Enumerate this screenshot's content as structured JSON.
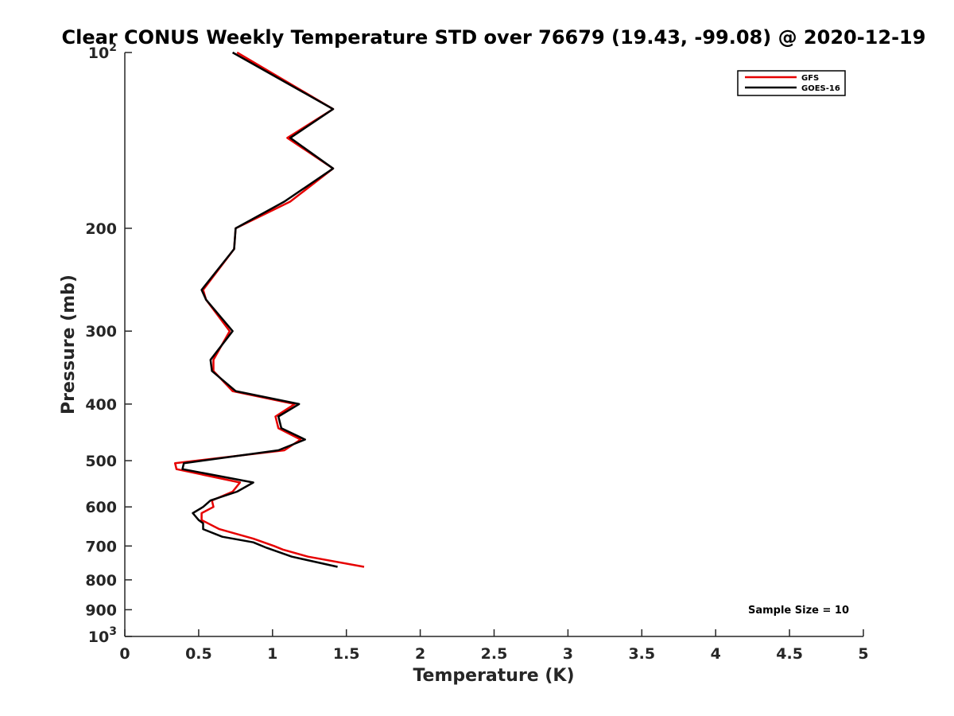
{
  "chart_data": {
    "type": "line",
    "title": "Clear CONUS Weekly Temperature STD over 76679 (19.43, -99.08) @ 2020-12-19",
    "xlabel": "Temperature (K)",
    "ylabel": "Pressure (mb)",
    "xlim": [
      0,
      5
    ],
    "ylim": [
      100,
      1000
    ],
    "y_scale": "log",
    "y_reversed": true,
    "x_ticks": [
      "0",
      "0.5",
      "1",
      "1.5",
      "2",
      "2.5",
      "3",
      "3.5",
      "4",
      "4.5",
      "5"
    ],
    "y_ticks": [
      {
        "value": 100,
        "base": "10",
        "exp": "2"
      },
      {
        "value": 200,
        "label": "200"
      },
      {
        "value": 300,
        "label": "300"
      },
      {
        "value": 400,
        "label": "400"
      },
      {
        "value": 500,
        "label": "500"
      },
      {
        "value": 600,
        "label": "600"
      },
      {
        "value": 700,
        "label": "700"
      },
      {
        "value": 800,
        "label": "800"
      },
      {
        "value": 900,
        "label": "900"
      },
      {
        "value": 1000,
        "base": "10",
        "exp": "3"
      }
    ],
    "grid": false,
    "legend_position": "top-right",
    "annotation": "Sample Size = 10",
    "series": [
      {
        "name": "GFS",
        "color": "#e60000",
        "points": [
          [
            0.76,
            100
          ],
          [
            1.41,
            125
          ],
          [
            1.1,
            140
          ],
          [
            1.41,
            158
          ],
          [
            1.12,
            180
          ],
          [
            0.75,
            200
          ],
          [
            0.74,
            217
          ],
          [
            0.53,
            255
          ],
          [
            0.55,
            265
          ],
          [
            0.71,
            300
          ],
          [
            0.6,
            336
          ],
          [
            0.6,
            351
          ],
          [
            0.73,
            380
          ],
          [
            1.15,
            400
          ],
          [
            1.02,
            420
          ],
          [
            1.04,
            440
          ],
          [
            1.19,
            460
          ],
          [
            1.08,
            480
          ],
          [
            0.34,
            505
          ],
          [
            0.35,
            517
          ],
          [
            0.78,
            545
          ],
          [
            0.73,
            565
          ],
          [
            0.59,
            585
          ],
          [
            0.6,
            600
          ],
          [
            0.52,
            615
          ],
          [
            0.52,
            632
          ],
          [
            0.64,
            655
          ],
          [
            0.87,
            680
          ],
          [
            1.01,
            700
          ],
          [
            1.07,
            710
          ],
          [
            1.24,
            730
          ],
          [
            1.62,
            760
          ]
        ]
      },
      {
        "name": "GOES-16",
        "color": "#000000",
        "points": [
          [
            0.73,
            100
          ],
          [
            1.41,
            125
          ],
          [
            1.12,
            140
          ],
          [
            1.41,
            158
          ],
          [
            1.08,
            180
          ],
          [
            0.75,
            200
          ],
          [
            0.74,
            217
          ],
          [
            0.52,
            255
          ],
          [
            0.55,
            265
          ],
          [
            0.73,
            300
          ],
          [
            0.58,
            336
          ],
          [
            0.59,
            351
          ],
          [
            0.75,
            380
          ],
          [
            1.18,
            400
          ],
          [
            1.04,
            420
          ],
          [
            1.06,
            440
          ],
          [
            1.22,
            460
          ],
          [
            1.04,
            480
          ],
          [
            0.4,
            505
          ],
          [
            0.39,
            517
          ],
          [
            0.87,
            545
          ],
          [
            0.76,
            565
          ],
          [
            0.58,
            585
          ],
          [
            0.53,
            600
          ],
          [
            0.46,
            615
          ],
          [
            0.5,
            632
          ],
          [
            0.53,
            640
          ],
          [
            0.53,
            655
          ],
          [
            0.66,
            675
          ],
          [
            0.87,
            690
          ],
          [
            0.96,
            705
          ],
          [
            1.13,
            730
          ],
          [
            1.44,
            760
          ]
        ]
      }
    ]
  }
}
